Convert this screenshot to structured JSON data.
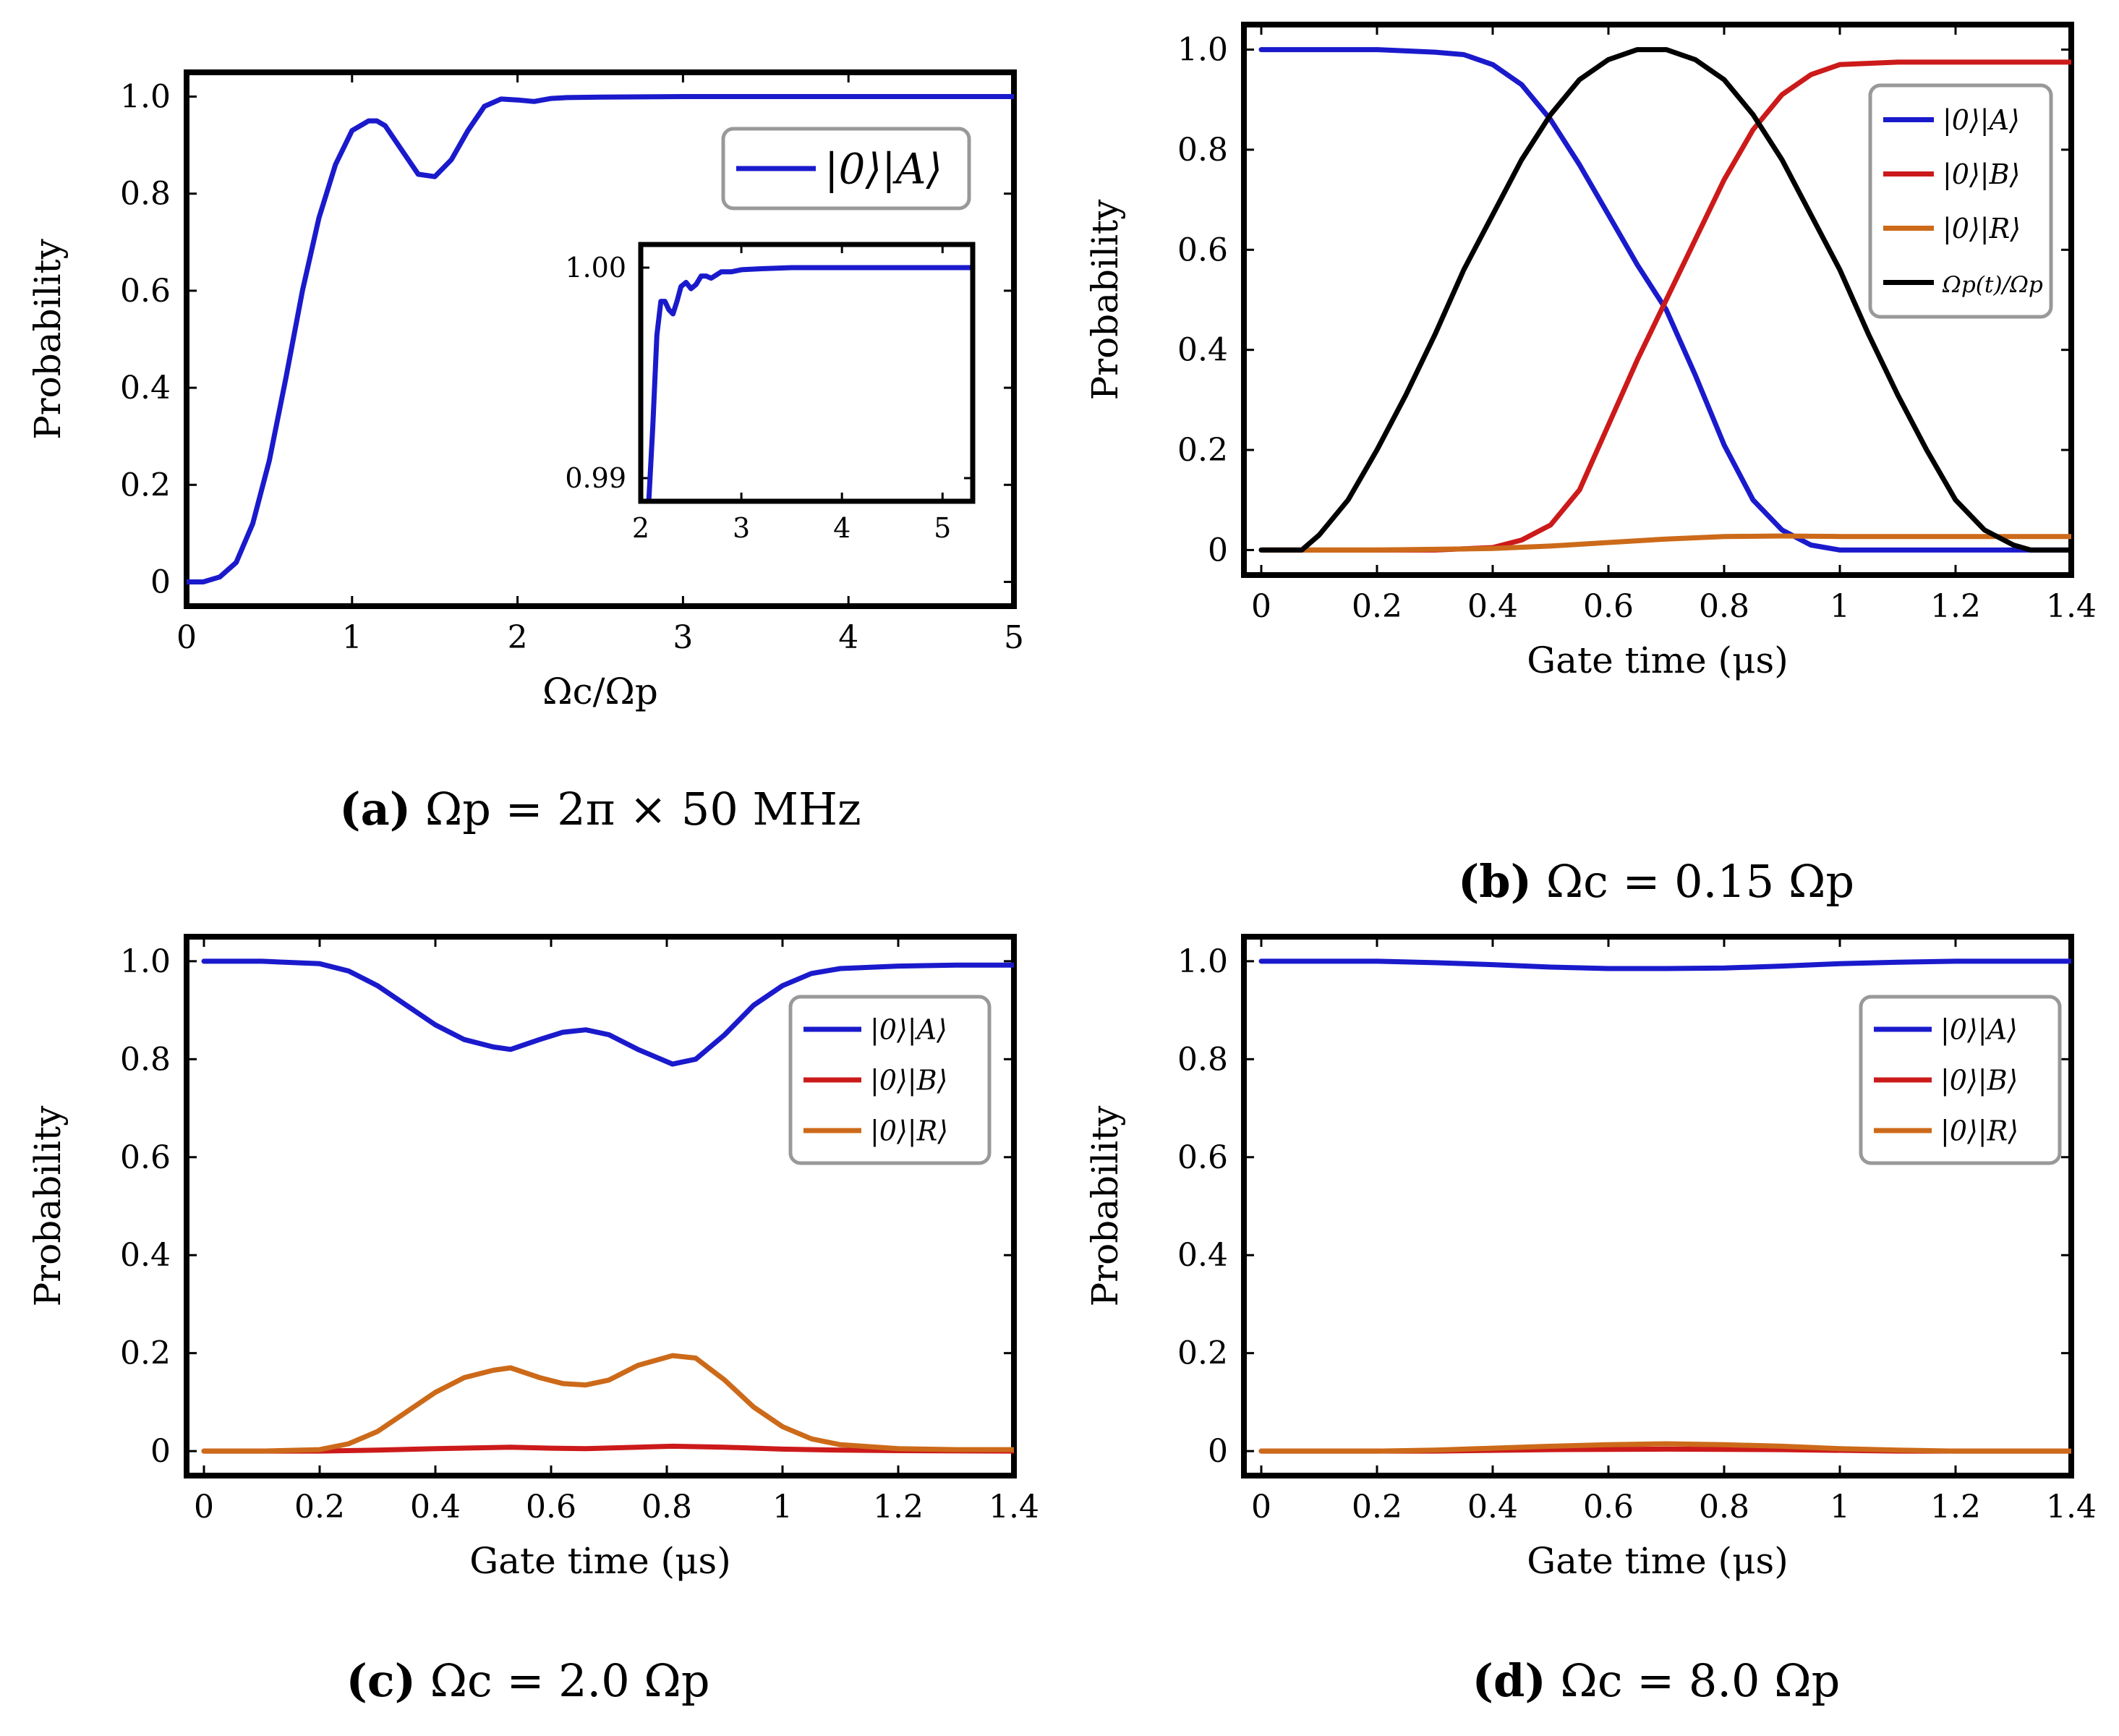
{
  "chart_data": [
    {
      "id": "a",
      "type": "line",
      "caption_label": "(a)",
      "caption_text": "Ωp = 2π × 50 MHz",
      "xlabel": "Ωc/Ωp",
      "ylabel": "Probability",
      "xlim": [
        0,
        5
      ],
      "ylim": [
        -0.05,
        1.05
      ],
      "xticks": [
        0,
        1,
        2,
        3,
        4,
        5
      ],
      "xtick_labels": [
        "0",
        "1",
        "2",
        "3",
        "4",
        "5"
      ],
      "yticks": [
        0,
        0.2,
        0.4,
        0.6,
        0.8,
        1.0
      ],
      "ytick_labels": [
        "0",
        "0.2",
        "0.4",
        "0.6",
        "0.8",
        "1.0"
      ],
      "legend": "top-right",
      "series": [
        {
          "name": "|0⟩|A⟩",
          "color": "#1a1acc",
          "x": [
            0,
            0.1,
            0.2,
            0.3,
            0.4,
            0.5,
            0.6,
            0.7,
            0.8,
            0.9,
            1.0,
            1.1,
            1.15,
            1.2,
            1.3,
            1.4,
            1.5,
            1.6,
            1.7,
            1.8,
            1.9,
            2.0,
            2.1,
            2.2,
            2.3,
            2.5,
            3.0,
            3.5,
            4.0,
            4.5,
            5.0
          ],
          "y": [
            0.0,
            0.0,
            0.01,
            0.04,
            0.12,
            0.25,
            0.42,
            0.6,
            0.75,
            0.86,
            0.93,
            0.95,
            0.95,
            0.94,
            0.89,
            0.84,
            0.835,
            0.87,
            0.93,
            0.98,
            0.995,
            0.993,
            0.99,
            0.996,
            0.998,
            0.999,
            1.0,
            1.0,
            1.0,
            1.0,
            1.0
          ]
        }
      ],
      "inset": {
        "xlim": [
          2,
          5.3
        ],
        "ylim": [
          0.9889,
          1.0011
        ],
        "xticks": [
          2,
          3,
          4,
          5
        ],
        "xtick_labels": [
          "2",
          "3",
          "4",
          "5"
        ],
        "yticks": [
          0.99,
          1.0
        ],
        "ytick_labels": [
          "0.99",
          "1.00"
        ],
        "x": [
          2.08,
          2.12,
          2.16,
          2.2,
          2.24,
          2.28,
          2.32,
          2.36,
          2.4,
          2.45,
          2.5,
          2.55,
          2.6,
          2.65,
          2.7,
          2.8,
          2.9,
          3.0,
          3.2,
          3.5,
          4.0,
          4.5,
          5.0,
          5.3
        ],
        "y": [
          0.9889,
          0.9925,
          0.9968,
          0.9984,
          0.9984,
          0.998,
          0.9978,
          0.9984,
          0.9991,
          0.9993,
          0.999,
          0.9992,
          0.9996,
          0.9996,
          0.9995,
          0.9998,
          0.9998,
          0.9999,
          0.99995,
          1.0,
          1.0,
          1.0,
          1.0,
          1.0
        ]
      }
    },
    {
      "id": "b",
      "type": "line",
      "caption_label": "(b)",
      "caption_text": "Ωc = 0.15 Ωp",
      "xlabel": "Gate time (μs)",
      "ylabel": "Probability",
      "xlim": [
        -0.03,
        1.4
      ],
      "ylim": [
        -0.05,
        1.05
      ],
      "xticks": [
        0,
        0.2,
        0.4,
        0.6,
        0.8,
        1.0,
        1.2,
        1.4
      ],
      "xtick_labels": [
        "0",
        "0.2",
        "0.4",
        "0.6",
        "0.8",
        "1",
        "1.2",
        "1.4"
      ],
      "yticks": [
        0,
        0.2,
        0.4,
        0.6,
        0.8,
        1.0
      ],
      "ytick_labels": [
        "0",
        "0.2",
        "0.4",
        "0.6",
        "0.8",
        "1.0"
      ],
      "legend": "top-right",
      "series": [
        {
          "name": "|0⟩|A⟩",
          "color": "#1a1acc",
          "x": [
            0,
            0.1,
            0.2,
            0.3,
            0.35,
            0.4,
            0.45,
            0.5,
            0.55,
            0.6,
            0.65,
            0.7,
            0.75,
            0.8,
            0.85,
            0.9,
            0.95,
            1.0,
            1.1,
            1.2,
            1.3,
            1.4
          ],
          "y": [
            1.0,
            1.0,
            1.0,
            0.995,
            0.99,
            0.97,
            0.93,
            0.86,
            0.77,
            0.67,
            0.57,
            0.48,
            0.35,
            0.21,
            0.1,
            0.04,
            0.01,
            0.0,
            0.0,
            0.0,
            0.0,
            0.0
          ]
        },
        {
          "name": "|0⟩|B⟩",
          "color": "#cc1a1a",
          "x": [
            0,
            0.3,
            0.4,
            0.45,
            0.5,
            0.55,
            0.6,
            0.65,
            0.7,
            0.75,
            0.8,
            0.85,
            0.9,
            0.95,
            1.0,
            1.1,
            1.2,
            1.3,
            1.4
          ],
          "y": [
            0.0,
            0.0,
            0.005,
            0.02,
            0.05,
            0.12,
            0.25,
            0.38,
            0.5,
            0.62,
            0.74,
            0.84,
            0.91,
            0.95,
            0.97,
            0.975,
            0.975,
            0.975,
            0.975
          ]
        },
        {
          "name": "|0⟩|R⟩",
          "color": "#cc6a1a",
          "x": [
            0,
            0.2,
            0.4,
            0.5,
            0.6,
            0.7,
            0.8,
            0.9,
            1.0,
            1.2,
            1.4
          ],
          "y": [
            0.0,
            0.0,
            0.003,
            0.008,
            0.015,
            0.022,
            0.027,
            0.028,
            0.027,
            0.027,
            0.027
          ]
        },
        {
          "name": "Ωp(t)/Ωp",
          "color": "#000000",
          "x": [
            0,
            0.07,
            0.1,
            0.15,
            0.2,
            0.25,
            0.3,
            0.35,
            0.4,
            0.45,
            0.5,
            0.55,
            0.6,
            0.65,
            0.7,
            0.75,
            0.8,
            0.85,
            0.9,
            0.95,
            1.0,
            1.05,
            1.1,
            1.15,
            1.2,
            1.25,
            1.3,
            1.33,
            1.36,
            1.4
          ],
          "y": [
            0.0,
            0.0,
            0.03,
            0.1,
            0.2,
            0.31,
            0.43,
            0.56,
            0.67,
            0.78,
            0.87,
            0.94,
            0.98,
            1.0,
            1.0,
            0.98,
            0.94,
            0.87,
            0.78,
            0.67,
            0.56,
            0.43,
            0.31,
            0.2,
            0.1,
            0.04,
            0.01,
            0.0,
            0.0,
            0.0
          ]
        }
      ]
    },
    {
      "id": "c",
      "type": "line",
      "caption_label": "(c)",
      "caption_text": "Ωc = 2.0 Ωp",
      "xlabel": "Gate time (μs)",
      "ylabel": "Probability",
      "xlim": [
        -0.03,
        1.4
      ],
      "ylim": [
        -0.05,
        1.05
      ],
      "xticks": [
        0,
        0.2,
        0.4,
        0.6,
        0.8,
        1.0,
        1.2,
        1.4
      ],
      "xtick_labels": [
        "0",
        "0.2",
        "0.4",
        "0.6",
        "0.8",
        "1",
        "1.2",
        "1.4"
      ],
      "yticks": [
        0,
        0.2,
        0.4,
        0.6,
        0.8,
        1.0
      ],
      "ytick_labels": [
        "0",
        "0.2",
        "0.4",
        "0.6",
        "0.8",
        "1.0"
      ],
      "legend": "top-right",
      "series": [
        {
          "name": "|0⟩|A⟩",
          "color": "#1a1acc",
          "x": [
            0,
            0.1,
            0.2,
            0.25,
            0.3,
            0.35,
            0.4,
            0.45,
            0.5,
            0.53,
            0.58,
            0.62,
            0.66,
            0.7,
            0.75,
            0.81,
            0.85,
            0.9,
            0.95,
            1.0,
            1.05,
            1.1,
            1.2,
            1.3,
            1.4
          ],
          "y": [
            1.0,
            1.0,
            0.995,
            0.98,
            0.95,
            0.91,
            0.87,
            0.84,
            0.825,
            0.82,
            0.84,
            0.855,
            0.86,
            0.85,
            0.82,
            0.79,
            0.8,
            0.85,
            0.91,
            0.95,
            0.975,
            0.985,
            0.99,
            0.992,
            0.992
          ]
        },
        {
          "name": "|0⟩|B⟩",
          "color": "#cc1a1a",
          "x": [
            0,
            0.2,
            0.3,
            0.4,
            0.53,
            0.6,
            0.66,
            0.75,
            0.81,
            0.9,
            1.0,
            1.1,
            1.2,
            1.4
          ],
          "y": [
            0.0,
            0.0,
            0.002,
            0.005,
            0.008,
            0.006,
            0.005,
            0.008,
            0.01,
            0.008,
            0.004,
            0.002,
            0.001,
            0.0
          ]
        },
        {
          "name": "|0⟩|R⟩",
          "color": "#cc6a1a",
          "x": [
            0,
            0.1,
            0.2,
            0.25,
            0.3,
            0.35,
            0.4,
            0.45,
            0.5,
            0.53,
            0.58,
            0.62,
            0.66,
            0.7,
            0.75,
            0.81,
            0.85,
            0.9,
            0.95,
            1.0,
            1.05,
            1.1,
            1.2,
            1.3,
            1.4
          ],
          "y": [
            0.0,
            0.0,
            0.003,
            0.015,
            0.04,
            0.08,
            0.12,
            0.15,
            0.165,
            0.17,
            0.15,
            0.138,
            0.135,
            0.145,
            0.175,
            0.195,
            0.19,
            0.145,
            0.09,
            0.05,
            0.025,
            0.013,
            0.005,
            0.003,
            0.003
          ]
        }
      ]
    },
    {
      "id": "d",
      "type": "line",
      "caption_label": "(d)",
      "caption_text": "Ωc = 8.0 Ωp",
      "xlabel": "Gate time (μs)",
      "ylabel": "Probability",
      "xlim": [
        -0.03,
        1.4
      ],
      "ylim": [
        -0.05,
        1.05
      ],
      "xticks": [
        0,
        0.2,
        0.4,
        0.6,
        0.8,
        1.0,
        1.2,
        1.4
      ],
      "xtick_labels": [
        "0",
        "0.2",
        "0.4",
        "0.6",
        "0.8",
        "1",
        "1.2",
        "1.4"
      ],
      "yticks": [
        0,
        0.2,
        0.4,
        0.6,
        0.8,
        1.0
      ],
      "ytick_labels": [
        "0",
        "0.2",
        "0.4",
        "0.6",
        "0.8",
        "1.0"
      ],
      "legend": "top-right",
      "series": [
        {
          "name": "|0⟩|A⟩",
          "color": "#1a1acc",
          "x": [
            0,
            0.2,
            0.3,
            0.4,
            0.5,
            0.6,
            0.7,
            0.8,
            0.9,
            1.0,
            1.1,
            1.2,
            1.4
          ],
          "y": [
            1.0,
            1.0,
            0.997,
            0.993,
            0.988,
            0.985,
            0.985,
            0.986,
            0.99,
            0.995,
            0.998,
            1.0,
            1.0
          ]
        },
        {
          "name": "|0⟩|B⟩",
          "color": "#cc1a1a",
          "x": [
            0,
            0.3,
            0.5,
            0.7,
            0.9,
            1.1,
            1.4
          ],
          "y": [
            0.0,
            0.0,
            0.003,
            0.004,
            0.003,
            0.0,
            0.0
          ]
        },
        {
          "name": "|0⟩|R⟩",
          "color": "#cc6a1a",
          "x": [
            0,
            0.2,
            0.3,
            0.4,
            0.5,
            0.6,
            0.7,
            0.8,
            0.9,
            1.0,
            1.1,
            1.2,
            1.4
          ],
          "y": [
            0.0,
            0.0,
            0.002,
            0.006,
            0.01,
            0.013,
            0.015,
            0.013,
            0.01,
            0.005,
            0.002,
            0.0,
            0.0
          ]
        }
      ]
    }
  ]
}
